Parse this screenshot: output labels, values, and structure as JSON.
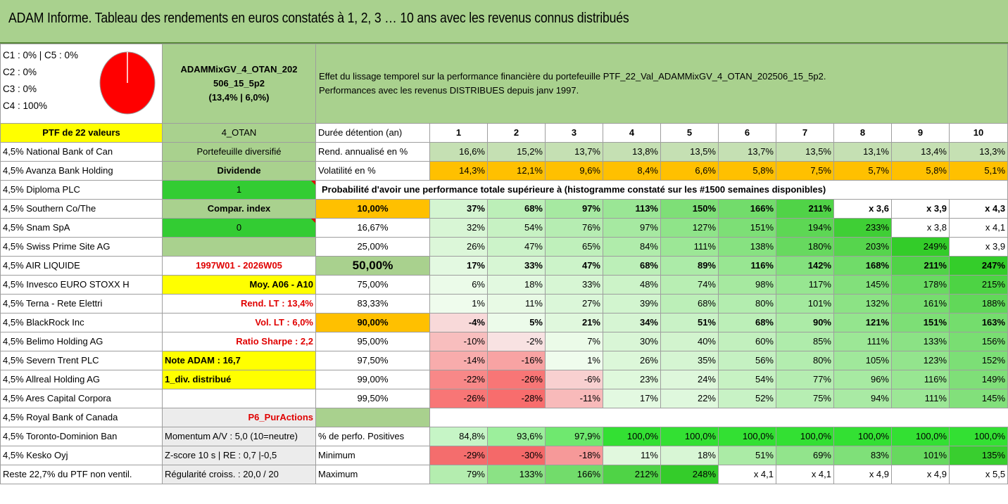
{
  "title": "ADAM Informe. Tableau des rendements en euros constatés à 1, 2, 3 … 10 ans avec les revenus connus distribués",
  "composition": {
    "line1": "C1 : 0% | C5 : 0%",
    "line2": "C2 : 0%",
    "line3": "C3 : 0%",
    "line4": "C4 : 100%",
    "pie_color": "#ff0000"
  },
  "portfolio": {
    "name_line1": "ADAMMixGV_4_OTAN_202",
    "name_line2": "506_15_5p2",
    "name_line3": "(13,4% | 6,0%)"
  },
  "effet": {
    "line1": "Effet du lissage temporel sur la performance financière du portefeuille PTF_22_Val_ADAMMixGV_4_OTAN_202506_15_5p2.",
    "line2": "Performances avec les revenus DISTRIBUES depuis janv 1997."
  },
  "left_header": "PTF de 22 valeurs",
  "mid_header": "4_OTAN",
  "duree_label": "Durée détention (an)",
  "years": [
    "1",
    "2",
    "3",
    "4",
    "5",
    "6",
    "7",
    "8",
    "9",
    "10"
  ],
  "holdings": [
    "4,5% National Bank of Can",
    "4,5% Avanza Bank Holding",
    "4,5% Diploma PLC",
    "4,5% Southern Co/The",
    "4,5% Snam SpA",
    "4,5% Swiss Prime Site AG",
    "4,5% AIR LIQUIDE",
    "4,5% Invesco EURO STOXX H",
    "4,5% Terna - Rete Elettri",
    "4,5% BlackRock Inc",
    "4,5% Belimo Holding AG",
    "4,5% Severn Trent PLC",
    "4,5% Allreal Holding AG",
    "4,5% Ares Capital Corpora",
    "4,5% Royal Bank of Canada",
    "4,5% Toronto-Dominion Ban",
    "4,5% Kesko Oyj",
    "Reste 22,7% du PTF non ventil."
  ],
  "mid_col": [
    "Portefeuille diversifié",
    "Dividende",
    "1",
    "Compar. index",
    "0",
    "",
    "1997W01 - 2026W05",
    "Moy. A06 - A10",
    "Rend. LT : 13,4%",
    "Vol. LT : 6,0%",
    "Ratio Sharpe : 2,2",
    "Note ADAM : 16,7",
    "1_div. distribué",
    "",
    "P6_PurActions",
    "Momentum A/V : 5,0 (10=neutre)",
    "Z-score 10 s | RE : 0,7 |-0,5",
    "Régularité croiss. : 20,0 / 20"
  ],
  "rend_label": "Rend. annualisé en %",
  "rend": [
    "16,6%",
    "15,2%",
    "13,7%",
    "13,8%",
    "13,5%",
    "13,7%",
    "13,5%",
    "13,1%",
    "13,4%",
    "13,3%"
  ],
  "vol_label": "Volatilité en %",
  "vol": [
    "14,3%",
    "12,1%",
    "9,6%",
    "8,4%",
    "6,6%",
    "5,8%",
    "7,5%",
    "5,7%",
    "5,8%",
    "5,1%"
  ],
  "prob_title": "Probabilité d'avoir une performance totale supérieure à (histogramme constaté sur les #1500 semaines disponibles)",
  "prob_rows": [
    {
      "p": "10,00%",
      "v": [
        "37%",
        "68%",
        "97%",
        "113%",
        "150%",
        "166%",
        "211%",
        "x 3,6",
        "x 3,9",
        "x 4,3"
      ]
    },
    {
      "p": "16,67%",
      "v": [
        "32%",
        "54%",
        "76%",
        "97%",
        "127%",
        "151%",
        "194%",
        "233%",
        "x 3,8",
        "x 4,1"
      ]
    },
    {
      "p": "25,00%",
      "v": [
        "26%",
        "47%",
        "65%",
        "84%",
        "111%",
        "138%",
        "180%",
        "203%",
        "249%",
        "x 3,9"
      ]
    },
    {
      "p": "50,00%",
      "v": [
        "17%",
        "33%",
        "47%",
        "68%",
        "89%",
        "116%",
        "142%",
        "168%",
        "211%",
        "247%"
      ]
    },
    {
      "p": "75,00%",
      "v": [
        "6%",
        "18%",
        "33%",
        "48%",
        "74%",
        "98%",
        "117%",
        "145%",
        "178%",
        "215%"
      ]
    },
    {
      "p": "83,33%",
      "v": [
        "1%",
        "11%",
        "27%",
        "39%",
        "68%",
        "80%",
        "101%",
        "132%",
        "161%",
        "188%"
      ]
    },
    {
      "p": "90,00%",
      "v": [
        "-4%",
        "5%",
        "21%",
        "34%",
        "51%",
        "68%",
        "90%",
        "121%",
        "151%",
        "163%"
      ]
    },
    {
      "p": "95,00%",
      "v": [
        "-10%",
        "-2%",
        "7%",
        "30%",
        "40%",
        "60%",
        "85%",
        "111%",
        "133%",
        "156%"
      ]
    },
    {
      "p": "97,50%",
      "v": [
        "-14%",
        "-16%",
        "1%",
        "26%",
        "35%",
        "56%",
        "80%",
        "105%",
        "123%",
        "152%"
      ]
    },
    {
      "p": "99,00%",
      "v": [
        "-22%",
        "-26%",
        "-6%",
        "23%",
        "24%",
        "54%",
        "77%",
        "96%",
        "116%",
        "149%"
      ]
    },
    {
      "p": "99,50%",
      "v": [
        "-26%",
        "-28%",
        "-11%",
        "17%",
        "22%",
        "52%",
        "75%",
        "94%",
        "111%",
        "145%"
      ]
    }
  ],
  "pos_label": "% de perfo. Positives",
  "pos": [
    "84,8%",
    "93,6%",
    "97,9%",
    "100,0%",
    "100,0%",
    "100,0%",
    "100,0%",
    "100,0%",
    "100,0%",
    "100,0%"
  ],
  "min_label": "Minimum",
  "min": [
    "-29%",
    "-30%",
    "-18%",
    "11%",
    "18%",
    "51%",
    "69%",
    "83%",
    "101%",
    "135%"
  ],
  "max_label": "Maximum",
  "max": [
    "79%",
    "133%",
    "166%",
    "212%",
    "248%",
    "x 4,1",
    "x 4,1",
    "x 4,9",
    "x 4,9",
    "x 5,5"
  ],
  "colors": {
    "banner": "#a9d18e",
    "yellow": "#ffff00",
    "green_bright": "#33cc33",
    "orange": "#ffc000",
    "red_text": "#e00000"
  }
}
